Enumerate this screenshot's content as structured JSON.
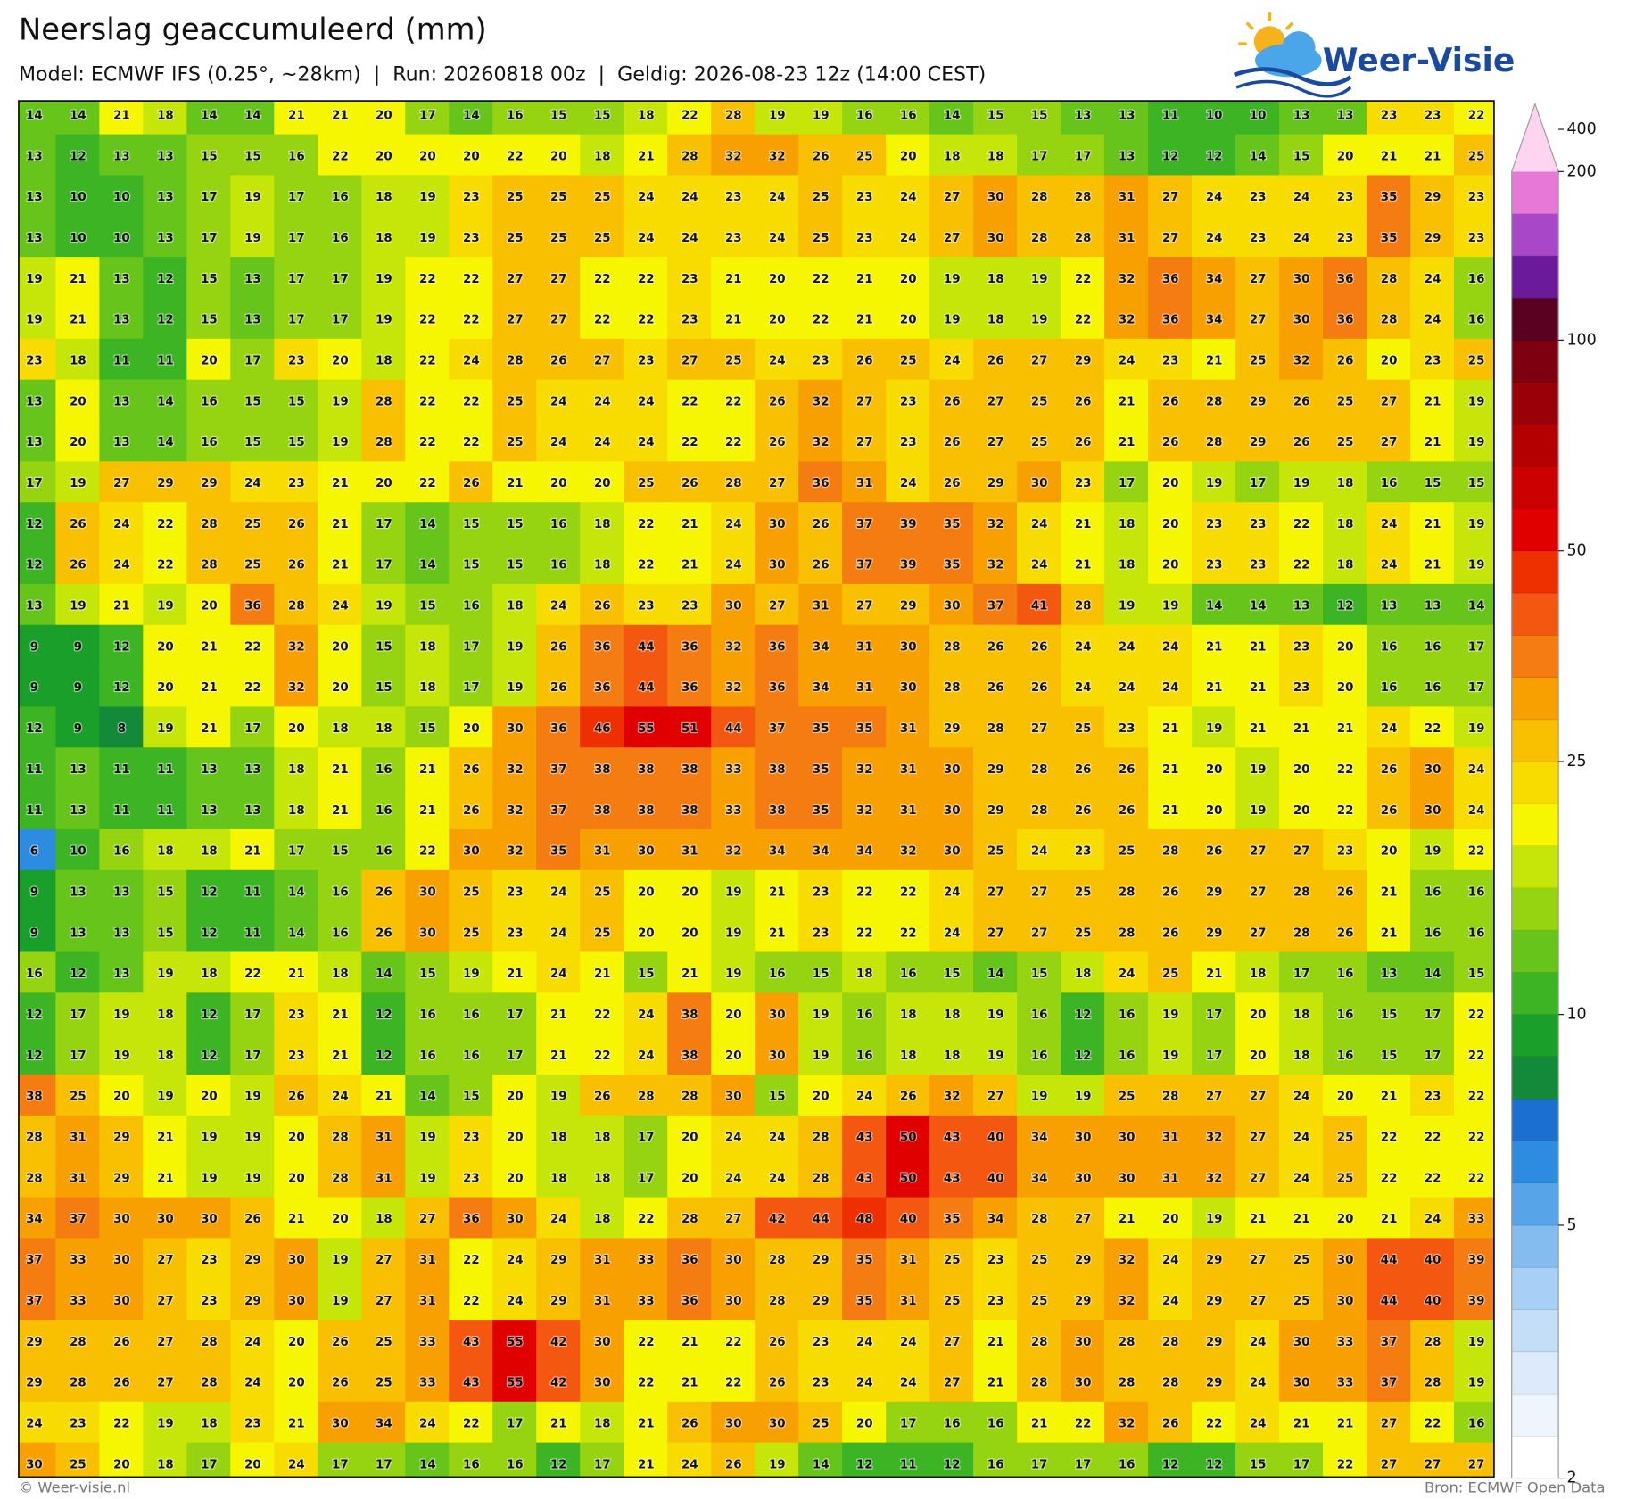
{
  "header": {
    "title": "Neerslag geaccumuleerd (mm)",
    "subtitle": "Model: ECMWF IFS (0.25°, ~28km)  |  Run: 20260818 00z  |  Geldig: 2026-08-23 12z (14:00 CEST)"
  },
  "logo": {
    "text": "Weer-Visie"
  },
  "map": {
    "values": [
      [
        14,
        14,
        21,
        18,
        14,
        14,
        21,
        21,
        20,
        17,
        14,
        16,
        15,
        15,
        18,
        22,
        28,
        19,
        19,
        16,
        16,
        14,
        15,
        15,
        13,
        13,
        11,
        10,
        10,
        13,
        13,
        23,
        23,
        22
      ],
      [
        13,
        12,
        13,
        13,
        15,
        15,
        16,
        22,
        20,
        20,
        20,
        22,
        20,
        18,
        21,
        28,
        32,
        32,
        26,
        25,
        20,
        18,
        18,
        17,
        17,
        13,
        12,
        12,
        14,
        15,
        20,
        21,
        21,
        25
      ],
      [
        13,
        10,
        10,
        13,
        17,
        19,
        17,
        16,
        18,
        19,
        23,
        25,
        25,
        25,
        24,
        24,
        23,
        24,
        25,
        23,
        24,
        27,
        30,
        28,
        28,
        31,
        27,
        24,
        23,
        24,
        23,
        35,
        29,
        23
      ],
      [
        13,
        10,
        10,
        13,
        17,
        19,
        17,
        16,
        18,
        19,
        23,
        25,
        25,
        25,
        24,
        24,
        23,
        24,
        25,
        23,
        24,
        27,
        30,
        28,
        28,
        31,
        27,
        24,
        23,
        24,
        23,
        35,
        29,
        23
      ],
      [
        19,
        21,
        13,
        12,
        15,
        13,
        17,
        17,
        19,
        22,
        22,
        27,
        27,
        22,
        22,
        23,
        21,
        20,
        22,
        21,
        20,
        19,
        18,
        19,
        22,
        32,
        36,
        34,
        27,
        30,
        36,
        28,
        24,
        16
      ],
      [
        19,
        21,
        13,
        12,
        15,
        13,
        17,
        17,
        19,
        22,
        22,
        27,
        27,
        22,
        22,
        23,
        21,
        20,
        22,
        21,
        20,
        19,
        18,
        19,
        22,
        32,
        36,
        34,
        27,
        30,
        36,
        28,
        24,
        16
      ],
      [
        23,
        18,
        11,
        11,
        20,
        17,
        23,
        20,
        18,
        22,
        24,
        28,
        26,
        27,
        23,
        27,
        25,
        24,
        23,
        26,
        25,
        24,
        26,
        27,
        29,
        24,
        23,
        21,
        25,
        32,
        26,
        20,
        23,
        25
      ],
      [
        13,
        20,
        13,
        14,
        16,
        15,
        15,
        19,
        28,
        22,
        22,
        25,
        24,
        24,
        24,
        22,
        22,
        26,
        32,
        27,
        23,
        26,
        27,
        25,
        26,
        21,
        26,
        28,
        29,
        26,
        25,
        27,
        21,
        19
      ],
      [
        13,
        20,
        13,
        14,
        16,
        15,
        15,
        19,
        28,
        22,
        22,
        25,
        24,
        24,
        24,
        22,
        22,
        26,
        32,
        27,
        23,
        26,
        27,
        25,
        26,
        21,
        26,
        28,
        29,
        26,
        25,
        27,
        21,
        19
      ],
      [
        17,
        19,
        27,
        29,
        29,
        24,
        23,
        21,
        20,
        22,
        26,
        21,
        20,
        20,
        25,
        26,
        28,
        27,
        36,
        31,
        24,
        26,
        29,
        30,
        23,
        17,
        20,
        19,
        17,
        19,
        18,
        16,
        15,
        15
      ],
      [
        12,
        26,
        24,
        22,
        28,
        25,
        26,
        21,
        17,
        14,
        15,
        15,
        16,
        18,
        22,
        21,
        24,
        30,
        26,
        37,
        39,
        35,
        32,
        24,
        21,
        18,
        20,
        23,
        23,
        22,
        18,
        24,
        21,
        19
      ],
      [
        12,
        26,
        24,
        22,
        28,
        25,
        26,
        21,
        17,
        14,
        15,
        15,
        16,
        18,
        22,
        21,
        24,
        30,
        26,
        37,
        39,
        35,
        32,
        24,
        21,
        18,
        20,
        23,
        23,
        22,
        18,
        24,
        21,
        19
      ],
      [
        13,
        19,
        21,
        19,
        20,
        36,
        28,
        24,
        19,
        15,
        16,
        18,
        24,
        26,
        23,
        23,
        30,
        27,
        31,
        27,
        29,
        30,
        37,
        41,
        28,
        19,
        19,
        14,
        14,
        13,
        12,
        13,
        13,
        14
      ],
      [
        9,
        9,
        12,
        20,
        21,
        22,
        32,
        20,
        15,
        18,
        17,
        19,
        26,
        36,
        44,
        36,
        32,
        36,
        34,
        31,
        30,
        28,
        26,
        26,
        24,
        24,
        24,
        21,
        21,
        23,
        20,
        16,
        16,
        17
      ],
      [
        9,
        9,
        12,
        20,
        21,
        22,
        32,
        20,
        15,
        18,
        17,
        19,
        26,
        36,
        44,
        36,
        32,
        36,
        34,
        31,
        30,
        28,
        26,
        26,
        24,
        24,
        24,
        21,
        21,
        23,
        20,
        16,
        16,
        17
      ],
      [
        12,
        9,
        8,
        19,
        21,
        17,
        20,
        18,
        18,
        15,
        20,
        30,
        36,
        46,
        55,
        51,
        44,
        37,
        35,
        35,
        31,
        29,
        28,
        27,
        25,
        23,
        21,
        19,
        21,
        21,
        21,
        24,
        22,
        19
      ],
      [
        11,
        13,
        11,
        11,
        13,
        13,
        18,
        21,
        16,
        21,
        26,
        32,
        37,
        38,
        38,
        38,
        33,
        38,
        35,
        32,
        31,
        30,
        29,
        28,
        26,
        26,
        21,
        20,
        19,
        20,
        22,
        26,
        30,
        24
      ],
      [
        11,
        13,
        11,
        11,
        13,
        13,
        18,
        21,
        16,
        21,
        26,
        32,
        37,
        38,
        38,
        38,
        33,
        38,
        35,
        32,
        31,
        30,
        29,
        28,
        26,
        26,
        21,
        20,
        19,
        20,
        22,
        26,
        30,
        24
      ],
      [
        6,
        10,
        16,
        18,
        18,
        21,
        17,
        15,
        16,
        22,
        30,
        32,
        35,
        31,
        30,
        31,
        32,
        34,
        34,
        34,
        32,
        30,
        25,
        24,
        23,
        25,
        28,
        26,
        27,
        27,
        23,
        20,
        19,
        22
      ],
      [
        9,
        13,
        13,
        15,
        12,
        11,
        14,
        16,
        26,
        30,
        25,
        23,
        24,
        25,
        20,
        20,
        19,
        21,
        23,
        22,
        22,
        24,
        27,
        27,
        25,
        28,
        26,
        29,
        27,
        28,
        26,
        21,
        16,
        16
      ],
      [
        9,
        13,
        13,
        15,
        12,
        11,
        14,
        16,
        26,
        30,
        25,
        23,
        24,
        25,
        20,
        20,
        19,
        21,
        23,
        22,
        22,
        24,
        27,
        27,
        25,
        28,
        26,
        29,
        27,
        28,
        26,
        21,
        16,
        16
      ],
      [
        16,
        12,
        13,
        19,
        18,
        22,
        21,
        18,
        14,
        15,
        19,
        21,
        24,
        21,
        15,
        21,
        19,
        16,
        15,
        18,
        16,
        15,
        14,
        15,
        18,
        24,
        25,
        21,
        18,
        17,
        16,
        13,
        14,
        15
      ],
      [
        12,
        17,
        19,
        18,
        12,
        17,
        23,
        21,
        12,
        16,
        16,
        17,
        21,
        22,
        24,
        38,
        20,
        30,
        19,
        16,
        18,
        18,
        19,
        16,
        12,
        16,
        19,
        17,
        20,
        18,
        16,
        15,
        17,
        22
      ],
      [
        12,
        17,
        19,
        18,
        12,
        17,
        23,
        21,
        12,
        16,
        16,
        17,
        21,
        22,
        24,
        38,
        20,
        30,
        19,
        16,
        18,
        18,
        19,
        16,
        12,
        16,
        19,
        17,
        20,
        18,
        16,
        15,
        17,
        22
      ],
      [
        38,
        25,
        20,
        19,
        20,
        19,
        26,
        24,
        21,
        14,
        15,
        20,
        19,
        26,
        28,
        28,
        30,
        15,
        20,
        24,
        26,
        32,
        27,
        19,
        19,
        25,
        28,
        27,
        27,
        24,
        20,
        21,
        23,
        22
      ],
      [
        28,
        31,
        29,
        21,
        19,
        19,
        20,
        28,
        31,
        19,
        23,
        20,
        18,
        18,
        17,
        20,
        24,
        24,
        28,
        43,
        50,
        43,
        40,
        34,
        30,
        30,
        31,
        32,
        27,
        24,
        25,
        22,
        22,
        22
      ],
      [
        28,
        31,
        29,
        21,
        19,
        19,
        20,
        28,
        31,
        19,
        23,
        20,
        18,
        18,
        17,
        20,
        24,
        24,
        28,
        43,
        50,
        43,
        40,
        34,
        30,
        30,
        31,
        32,
        27,
        24,
        25,
        22,
        22,
        22
      ],
      [
        34,
        37,
        30,
        30,
        30,
        26,
        21,
        20,
        18,
        27,
        36,
        30,
        24,
        18,
        22,
        28,
        27,
        42,
        44,
        48,
        40,
        35,
        34,
        28,
        27,
        21,
        20,
        19,
        21,
        21,
        20,
        21,
        24,
        33
      ],
      [
        37,
        33,
        30,
        27,
        23,
        29,
        30,
        19,
        27,
        31,
        22,
        24,
        29,
        31,
        33,
        36,
        30,
        28,
        29,
        35,
        31,
        25,
        23,
        25,
        29,
        32,
        24,
        29,
        27,
        25,
        30,
        44,
        40,
        39
      ],
      [
        37,
        33,
        30,
        27,
        23,
        29,
        30,
        19,
        27,
        31,
        22,
        24,
        29,
        31,
        33,
        36,
        30,
        28,
        29,
        35,
        31,
        25,
        23,
        25,
        29,
        32,
        24,
        29,
        27,
        25,
        30,
        44,
        40,
        39
      ],
      [
        29,
        28,
        26,
        27,
        28,
        24,
        20,
        26,
        25,
        33,
        43,
        55,
        42,
        30,
        22,
        21,
        22,
        26,
        23,
        24,
        24,
        27,
        21,
        28,
        30,
        28,
        28,
        29,
        24,
        30,
        33,
        37,
        28,
        19
      ],
      [
        29,
        28,
        26,
        27,
        28,
        24,
        20,
        26,
        25,
        33,
        43,
        55,
        42,
        30,
        22,
        21,
        22,
        26,
        23,
        24,
        24,
        27,
        21,
        28,
        30,
        28,
        28,
        29,
        24,
        30,
        33,
        37,
        28,
        19
      ],
      [
        24,
        23,
        22,
        19,
        18,
        23,
        21,
        30,
        34,
        24,
        22,
        17,
        21,
        18,
        21,
        26,
        30,
        30,
        25,
        20,
        17,
        16,
        16,
        21,
        22,
        32,
        26,
        22,
        24,
        21,
        21,
        27,
        22,
        16
      ],
      [
        30,
        25,
        20,
        18,
        17,
        20,
        24,
        17,
        17,
        14,
        16,
        16,
        12,
        17,
        21,
        24,
        26,
        19,
        14,
        12,
        11,
        12,
        16,
        17,
        17,
        16,
        12,
        12,
        15,
        17,
        22,
        27,
        27,
        27
      ]
    ]
  },
  "colorbar": {
    "levels": [
      2,
      2.5,
      3,
      3.5,
      4,
      4.5,
      5,
      6,
      7,
      8,
      9,
      10,
      12.5,
      15,
      17.5,
      20,
      22.5,
      25,
      30,
      35,
      40,
      45,
      50,
      60,
      70,
      80,
      90,
      100,
      125,
      150,
      175,
      200,
      400
    ],
    "colors": [
      "#ffffff",
      "#eef5fd",
      "#dceafa",
      "#c4def8",
      "#a8d0f6",
      "#84bcf0",
      "#58a4e8",
      "#2e8ce0",
      "#1a6fd0",
      "#138a3a",
      "#1aa02a",
      "#3cb424",
      "#66c41a",
      "#96d412",
      "#c6e60a",
      "#f6f600",
      "#f8dc00",
      "#f8c000",
      "#f8a000",
      "#f47c10",
      "#f45810",
      "#ee3000",
      "#e00000",
      "#cc0000",
      "#b40000",
      "#9a0008",
      "#7e0010",
      "#5a0020",
      "#6a1a9a",
      "#a848c8",
      "#e878d8",
      "#ffd4f0"
    ],
    "ticks": [
      2,
      5,
      10,
      25,
      50,
      100,
      200,
      400
    ]
  },
  "footer": {
    "left": "© Weer-visie.nl",
    "right": "Bron: ECMWF Open Data"
  }
}
